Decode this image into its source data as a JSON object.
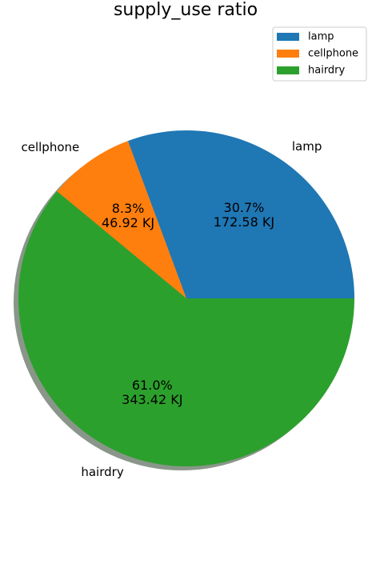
{
  "chart_data": {
    "type": "pie",
    "title": "supply_use ratio",
    "unit": "KJ",
    "categories": [
      "lamp",
      "cellphone",
      "hairdry"
    ],
    "values": [
      172.58,
      46.92,
      343.42
    ],
    "percent_labels": [
      "30.7%",
      "8.3%",
      "61.0%"
    ],
    "value_labels": [
      "172.58 KJ",
      "46.92 KJ",
      "343.42 KJ"
    ],
    "colors": [
      "#1f77b4",
      "#ff7f0e",
      "#2ca02c"
    ],
    "shadow": true,
    "start_angle_deg": 0,
    "direction": "counterclockwise",
    "legend": {
      "position": "top-right",
      "entries": [
        "lamp",
        "cellphone",
        "hairdry"
      ]
    }
  }
}
